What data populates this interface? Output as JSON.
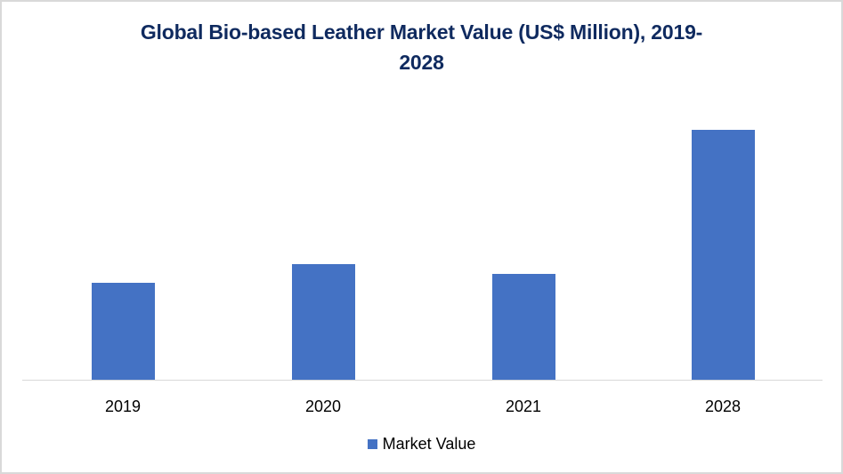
{
  "chart_data": {
    "type": "bar",
    "title": "Global Bio-based Leather Market Value (US$ Million), 2019-2028",
    "title_lines": [
      "Global Bio-based Leather Market Value (US$ Million), 2019-",
      "2028"
    ],
    "categories": [
      "2019",
      "2020",
      "2021",
      "2028"
    ],
    "series": [
      {
        "name": "Market Value",
        "color": "#4472c4",
        "values": [
          109,
          130,
          119,
          281
        ],
        "value_note": "relative bar heights (no y-axis scale shown)"
      }
    ],
    "xlabel": "",
    "ylabel": "",
    "y_axis_visible": false,
    "grid": false,
    "legend_position": "bottom"
  },
  "legend": {
    "label": "Market Value"
  },
  "colors": {
    "bar": "#4472c4",
    "title": "#0f2a5f",
    "axis": "#d9d9d9"
  }
}
